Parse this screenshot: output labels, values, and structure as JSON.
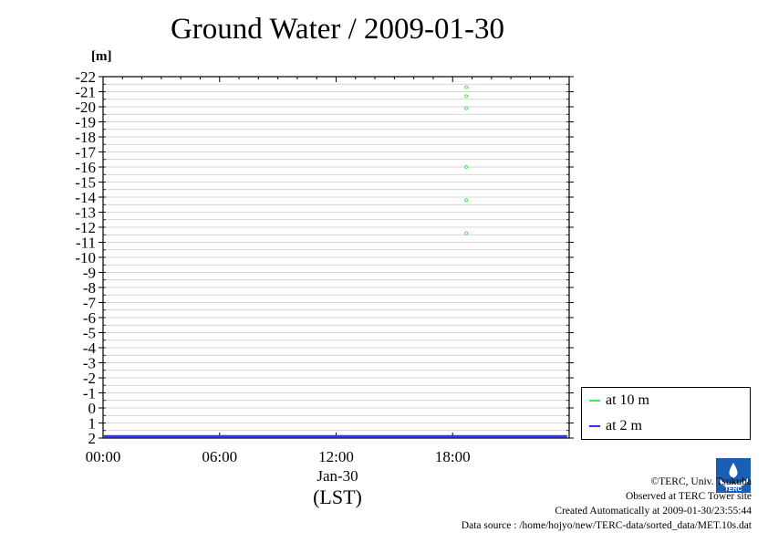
{
  "title": "Ground Water / 2009-01-30",
  "chart_data": {
    "type": "line",
    "title": "Ground Water / 2009-01-30",
    "ylabel": "[m]",
    "xlabel_date": "Jan-30",
    "xlabel_zone": "(LST)",
    "ylim": [
      -22,
      2
    ],
    "y_inverted": true,
    "y_ticks": [
      -22,
      -21,
      -20,
      -19,
      -18,
      -17,
      -16,
      -15,
      -14,
      -13,
      -12,
      -11,
      -10,
      -9,
      -8,
      -7,
      -6,
      -5,
      -4,
      -3,
      -2,
      -1,
      0,
      1,
      2
    ],
    "x_range_hours": [
      0,
      24
    ],
    "x_ticks": [
      {
        "hour": 0,
        "label": "00:00"
      },
      {
        "hour": 6,
        "label": "06:00"
      },
      {
        "hour": 12,
        "label": "12:00"
      },
      {
        "hour": 18,
        "label": "18:00"
      }
    ],
    "grid": "horizontal",
    "legend": "right",
    "series": [
      {
        "name": "at 10 m",
        "color": "#44ee44",
        "style": "points",
        "points": [
          [
            18.7,
            -21.3
          ],
          [
            18.7,
            -20.7
          ],
          [
            18.7,
            -19.9
          ],
          [
            18.7,
            -16.0
          ],
          [
            18.7,
            -13.8
          ],
          [
            18.7,
            -11.6
          ]
        ]
      },
      {
        "name": "at 2 m",
        "color": "#3333ff",
        "style": "line",
        "points": [
          [
            0,
            1.9
          ],
          [
            2,
            1.9
          ],
          [
            4,
            1.9
          ],
          [
            6,
            1.9
          ],
          [
            8,
            1.9
          ],
          [
            10,
            1.9
          ],
          [
            12,
            1.9
          ],
          [
            14,
            1.9
          ],
          [
            16,
            1.9
          ],
          [
            18,
            1.9
          ],
          [
            20,
            1.9
          ],
          [
            22,
            1.9
          ],
          [
            23.9,
            1.9
          ]
        ]
      }
    ]
  },
  "credits": {
    "line1": "©TERC, Univ. Tsukuba",
    "line2": "Observed at TERC Tower site",
    "line3": "Created Automatically at 2009-01-30/23:55:44",
    "line4": "Data source : /home/hojyo/new/TERC-data/sorted_data/MET.10s.dat"
  },
  "logo": {
    "text": "TERC",
    "color": "#1a5fb4"
  }
}
